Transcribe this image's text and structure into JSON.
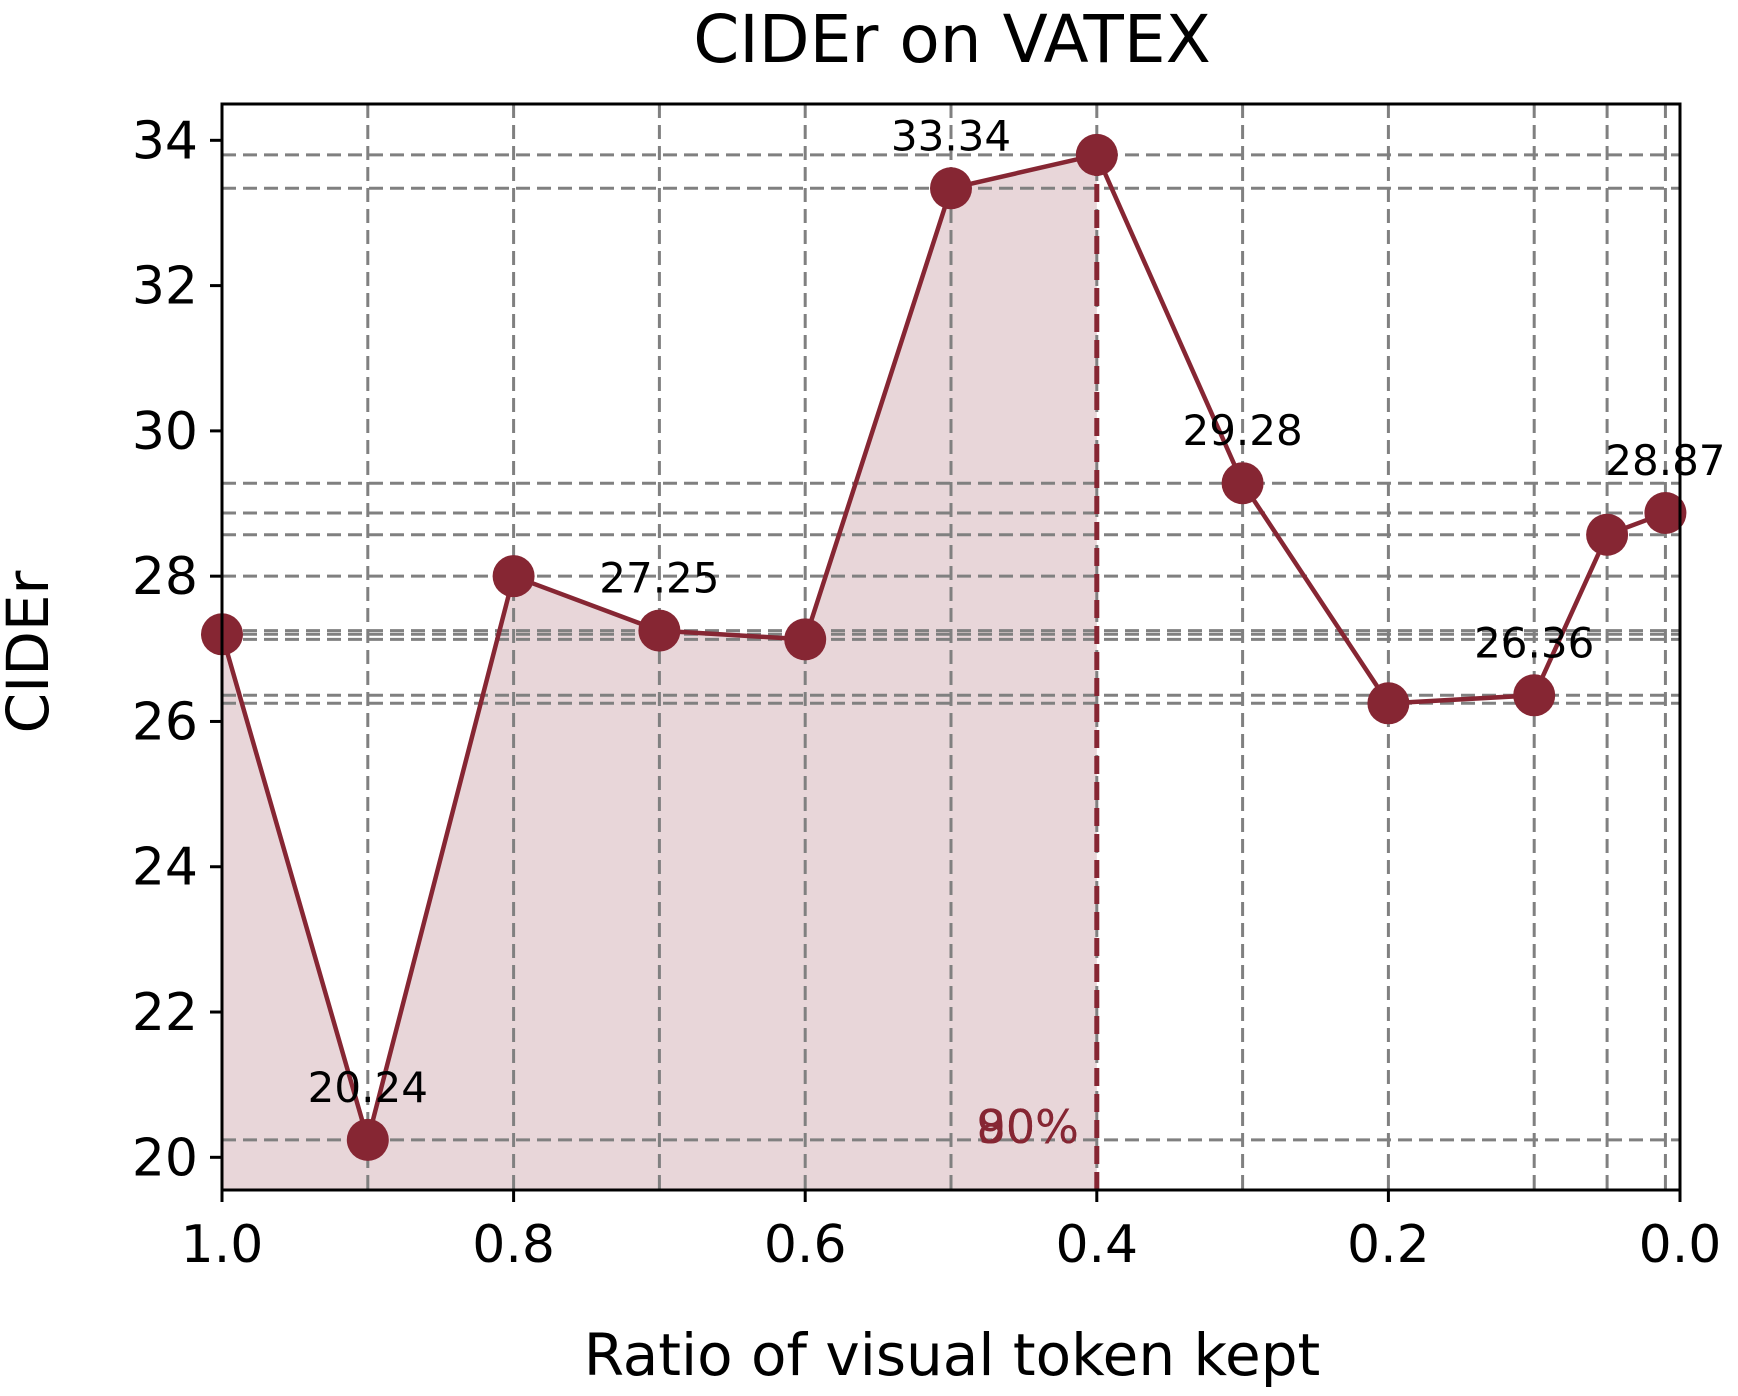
{
  "chart_data": {
    "type": "line",
    "title": "CIDEr on VATEX",
    "xlabel": "Ratio of visual token kept",
    "ylabel": "CIDEr",
    "x_reversed": true,
    "xlim": [
      1.0,
      0.0
    ],
    "ylim": [
      19.55,
      34.5
    ],
    "xticks": [
      1.0,
      0.8,
      0.6,
      0.4,
      0.2,
      0.0
    ],
    "xtick_labels": [
      "1.0",
      "0.8",
      "0.6",
      "0.4",
      "0.2",
      "0.0"
    ],
    "yticks": [
      20,
      22,
      24,
      26,
      28,
      30,
      32,
      34
    ],
    "ytick_labels": [
      "20",
      "22",
      "24",
      "26",
      "28",
      "30",
      "32",
      "34"
    ],
    "grid": true,
    "series": [
      {
        "x": [
          1.0,
          0.9,
          0.8,
          0.7,
          0.6,
          0.5,
          0.4,
          0.3,
          0.2,
          0.1,
          0.05,
          0.01
        ],
        "values": [
          27.2,
          20.24,
          28.0,
          27.25,
          27.13,
          33.34,
          33.8,
          29.28,
          26.25,
          26.36,
          28.57,
          28.87
        ],
        "color": "#862633"
      }
    ],
    "data_labels": [
      {
        "x": 0.9,
        "y": 20.24,
        "text": "20.24"
      },
      {
        "x": 0.7,
        "y": 27.25,
        "text": "27.25"
      },
      {
        "x": 0.5,
        "y": 33.34,
        "text": "33.34"
      },
      {
        "x": 0.3,
        "y": 29.28,
        "text": "29.28"
      },
      {
        "x": 0.1,
        "y": 26.36,
        "text": "26.36"
      },
      {
        "x": 0.01,
        "y": 28.87,
        "text": "28.87"
      }
    ],
    "marker": {
      "x": 0.4,
      "label": "90%",
      "overlap_label": "80%",
      "color": "#862633"
    },
    "fill_color": "#e8d6d9",
    "grid_color": "#808080"
  }
}
